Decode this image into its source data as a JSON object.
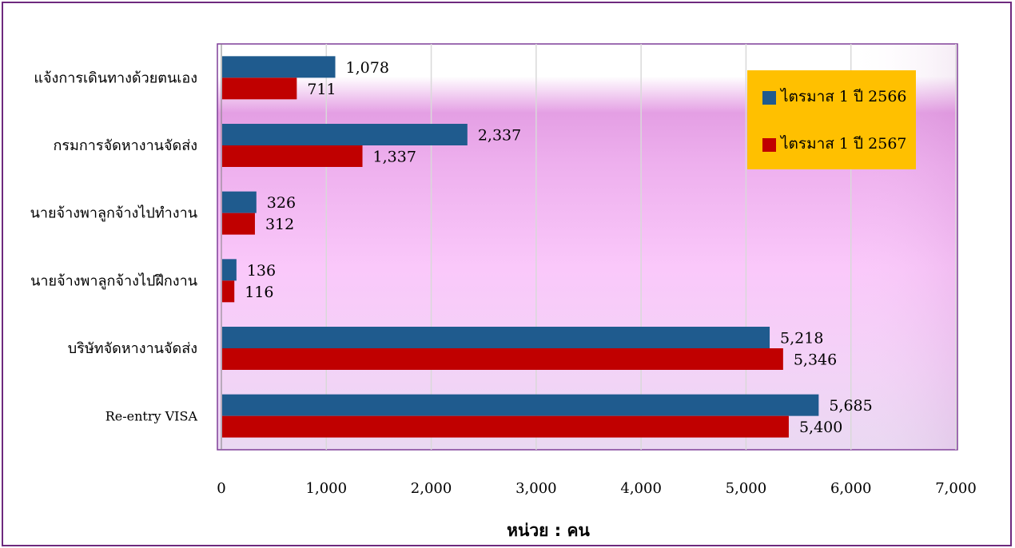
{
  "chart_data": {
    "type": "bar",
    "orientation": "horizontal",
    "categories": [
      "แจ้งการเดินทางด้วยตนเอง",
      "กรมการจัดหางานจัดส่ง",
      "นายจ้างพาลูกจ้างไปทำงาน",
      "นายจ้างพาลูกจ้างไปฝึกงาน",
      "บริษัทจัดหางานจัดส่ง",
      "Re-entry VISA"
    ],
    "series": [
      {
        "name": "ไตรมาส 1 ปี 2566",
        "color": "#1f5b8e",
        "values": [
          1078,
          2337,
          326,
          136,
          5218,
          5685
        ],
        "labels": [
          "1,078",
          "2,337",
          "326",
          "136",
          "5,218",
          "5,685"
        ]
      },
      {
        "name": "ไตรมาส 1 ปี 2567",
        "color": "#c00000",
        "values": [
          711,
          1337,
          312,
          116,
          5346,
          5400
        ],
        "labels": [
          "711",
          "1,337",
          "312",
          "116",
          "5,346",
          "5,400"
        ]
      }
    ],
    "xlim": [
      0,
      7000
    ],
    "xticks": [
      0,
      1000,
      2000,
      3000,
      4000,
      5000,
      6000,
      7000
    ],
    "xtick_labels": [
      "0",
      "1,000",
      "2,000",
      "3,000",
      "4,000",
      "5,000",
      "6,000",
      "7,000"
    ],
    "xlabel": "หน่วย : คน",
    "ylabel": "",
    "title": "",
    "grid": true,
    "legend_position": "top-right",
    "colors": {
      "frame": "#6e2a7e",
      "legend_bg": "#ffc000",
      "gridline": "#d9d9d9",
      "plot_gradient": [
        "#ffffff",
        "#e9a6e9",
        "#f8c6f8",
        "#ecdcf2"
      ]
    }
  }
}
